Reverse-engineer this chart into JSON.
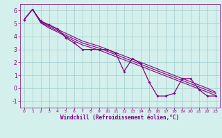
{
  "x": [
    0,
    1,
    2,
    3,
    4,
    5,
    6,
    7,
    8,
    9,
    10,
    11,
    12,
    13,
    14,
    15,
    16,
    17,
    18,
    19,
    20,
    21,
    22,
    23
  ],
  "y_main": [
    5.3,
    6.1,
    5.2,
    4.9,
    4.6,
    3.9,
    3.5,
    3.0,
    3.0,
    3.0,
    3.0,
    2.7,
    1.3,
    2.3,
    1.9,
    0.5,
    -0.6,
    -0.6,
    -0.4,
    0.75,
    0.75,
    -0.1,
    -0.6,
    -0.6
  ],
  "y_line1": [
    5.3,
    6.1,
    5.15,
    4.85,
    4.55,
    4.25,
    3.95,
    3.65,
    3.45,
    3.25,
    3.0,
    2.75,
    2.5,
    2.25,
    2.0,
    1.75,
    1.5,
    1.25,
    1.0,
    0.75,
    0.5,
    0.25,
    0.0,
    -0.3
  ],
  "y_line2": [
    5.3,
    6.1,
    5.1,
    4.75,
    4.45,
    4.1,
    3.8,
    3.5,
    3.3,
    3.1,
    2.85,
    2.6,
    2.35,
    2.1,
    1.85,
    1.6,
    1.35,
    1.1,
    0.85,
    0.6,
    0.35,
    0.1,
    -0.15,
    -0.4
  ],
  "y_line3": [
    5.3,
    6.1,
    5.05,
    4.65,
    4.35,
    4.0,
    3.65,
    3.35,
    3.15,
    2.95,
    2.7,
    2.45,
    2.2,
    1.95,
    1.7,
    1.45,
    1.2,
    0.95,
    0.7,
    0.45,
    0.2,
    -0.05,
    -0.3,
    -0.55
  ],
  "line_color": "#800080",
  "bg_color": "#d4f0ec",
  "grid_color": "#a0cccc",
  "xlabel": "Windchill (Refroidissement éolien,°C)",
  "xlabel_color": "#800080",
  "tick_color": "#800080",
  "xlim": [
    -0.5,
    23.5
  ],
  "ylim": [
    -1.5,
    6.5
  ],
  "yticks": [
    -1,
    0,
    1,
    2,
    3,
    4,
    5,
    6
  ],
  "xticks": [
    0,
    1,
    2,
    3,
    4,
    5,
    6,
    7,
    8,
    9,
    10,
    11,
    12,
    13,
    14,
    15,
    16,
    17,
    18,
    19,
    20,
    21,
    22,
    23
  ]
}
